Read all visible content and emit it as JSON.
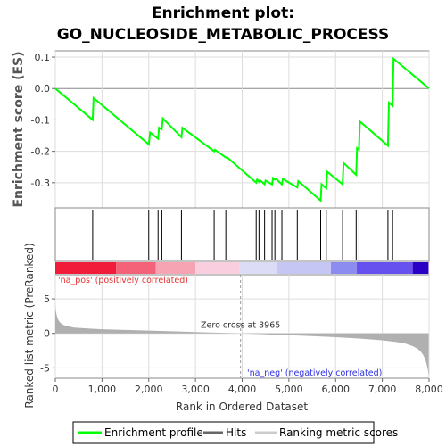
{
  "chart_data": {
    "type": "line",
    "title_line1": "Enrichment plot:",
    "title_line2": "GO_NUCLEOSIDE_METABOLIC_PROCESS",
    "es_ylabel": "Enrichment score (ES)",
    "metric_ylabel": "Ranked list metric (PreRanked)",
    "xlabel": "Rank in Ordered Dataset",
    "xlim": [
      0,
      8000
    ],
    "es_ylim": [
      -0.38,
      0.12
    ],
    "metric_ylim": [
      -6.5,
      8.5
    ],
    "x_ticks": [
      0,
      1000,
      2000,
      3000,
      4000,
      5000,
      6000,
      7000,
      8000
    ],
    "x_tick_labels": [
      "0",
      "1,000",
      "2,000",
      "3,000",
      "4,000",
      "5,000",
      "6,000",
      "7,000",
      "8,000"
    ],
    "es_ticks": [
      0.1,
      0.0,
      -0.1,
      -0.2,
      -0.3
    ],
    "es_tick_labels": [
      "0.1",
      "0.0",
      "-0.1",
      "-0.2",
      "-0.3"
    ],
    "metric_ticks": [
      5,
      0,
      -5
    ],
    "metric_tick_labels": [
      "5",
      "0",
      "-5"
    ],
    "es_curve": {
      "x": [
        0,
        800,
        820,
        2000,
        2030,
        2200,
        2220,
        2280,
        2300,
        2700,
        2720,
        3400,
        3420,
        3650,
        3670,
        4300,
        4320,
        4360,
        4380,
        4480,
        4500,
        4640,
        4660,
        4700,
        4720,
        4850,
        4870,
        5180,
        5200,
        5680,
        5700,
        5800,
        5820,
        6150,
        6170,
        6440,
        6460,
        6500,
        6520,
        7120,
        7140,
        7220,
        7240,
        8000
      ],
      "y": [
        0.0,
        -0.1,
        -0.03,
        -0.178,
        -0.14,
        -0.16,
        -0.125,
        -0.13,
        -0.095,
        -0.155,
        -0.125,
        -0.2,
        -0.195,
        -0.22,
        -0.218,
        -0.3,
        -0.29,
        -0.297,
        -0.292,
        -0.305,
        -0.293,
        -0.305,
        -0.285,
        -0.29,
        -0.287,
        -0.305,
        -0.288,
        -0.315,
        -0.295,
        -0.357,
        -0.305,
        -0.318,
        -0.265,
        -0.305,
        -0.237,
        -0.275,
        -0.19,
        -0.195,
        -0.105,
        -0.182,
        -0.045,
        -0.055,
        0.095,
        0.0
      ]
    },
    "hits": [
      800,
      2000,
      2200,
      2280,
      2700,
      3400,
      3650,
      4300,
      4360,
      4480,
      4640,
      4700,
      4850,
      5180,
      5680,
      5800,
      6150,
      6440,
      6500,
      7120,
      7220
    ],
    "heat_bands": [
      {
        "from": 0,
        "to": 1300,
        "color": "#f01c3a"
      },
      {
        "from": 1300,
        "to": 2150,
        "color": "#f4627a"
      },
      {
        "from": 2150,
        "to": 3000,
        "color": "#f6a4b4"
      },
      {
        "from": 3000,
        "to": 3950,
        "color": "#f9cfe0"
      },
      {
        "from": 3950,
        "to": 4750,
        "color": "#dcdcf6"
      },
      {
        "from": 4750,
        "to": 5900,
        "color": "#c6c6f4"
      },
      {
        "from": 5900,
        "to": 6450,
        "color": "#8c8cf0"
      },
      {
        "from": 6450,
        "to": 7650,
        "color": "#6650ee"
      },
      {
        "from": 7650,
        "to": 7990,
        "color": "#2a00c4"
      }
    ],
    "metric_curve": {
      "x": [
        0,
        10,
        30,
        60,
        100,
        150,
        250,
        400,
        700,
        1000,
        1500,
        2000,
        2500,
        3000,
        3500,
        3965,
        4500,
        5000,
        5500,
        6000,
        6500,
        7000,
        7300,
        7500,
        7650,
        7750,
        7830,
        7880,
        7920,
        7950,
        7975,
        7990
      ],
      "y": [
        4.2,
        3.3,
        2.6,
        2.0,
        1.6,
        1.3,
        1.05,
        0.85,
        0.7,
        0.6,
        0.5,
        0.4,
        0.3,
        0.2,
        0.1,
        0.0,
        -0.12,
        -0.25,
        -0.4,
        -0.55,
        -0.75,
        -1.0,
        -1.25,
        -1.5,
        -1.85,
        -2.2,
        -2.7,
        -3.2,
        -3.8,
        -4.5,
        -5.3,
        -6.2
      ]
    },
    "zero_cross_rank": 3965,
    "zero_cross_label": "Zero cross at 3965",
    "pos_label": "'na_pos' (positively correlated)",
    "neg_label": "'na_neg' (negatively correlated)",
    "legend": [
      {
        "label": "Enrichment profile",
        "color": "#00ff00"
      },
      {
        "label": "Hits",
        "color": "#666666"
      },
      {
        "label": "Ranking metric scores",
        "color": "#cccccc"
      }
    ],
    "colors": {
      "es_line": "#00ff00",
      "hit_line": "#000000",
      "zero_line": "#888888",
      "metric_fill": "#b0b0b0",
      "pos_text": "#e83030",
      "neg_text": "#3030e0"
    }
  }
}
